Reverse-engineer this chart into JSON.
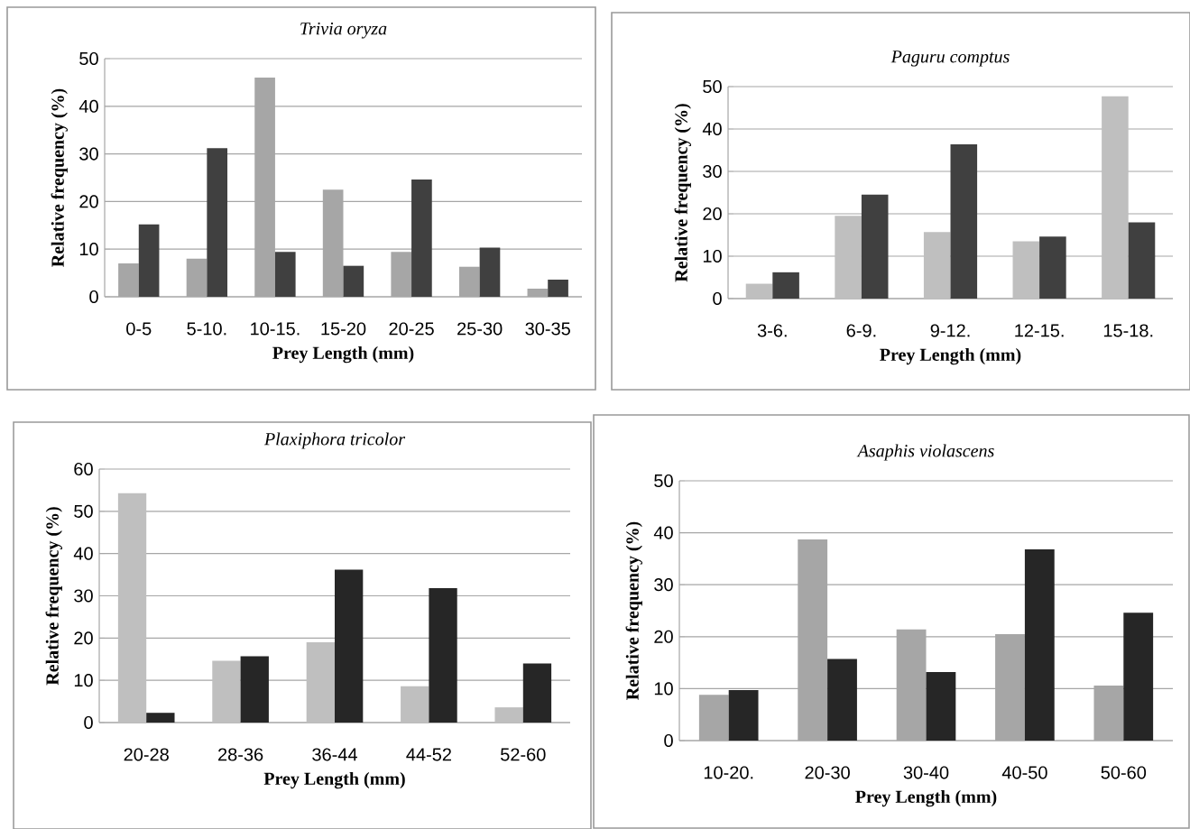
{
  "chart_data": [
    {
      "type": "bar",
      "title": "Trivia oryza",
      "xlabel": "Prey Length (mm)",
      "ylabel": "Relative frequency (%)",
      "categories": [
        "0-5",
        "5-10.",
        "10-15.",
        "15-20",
        "20-25",
        "25-30",
        "30-35"
      ],
      "series": [
        {
          "color": "#a6a6a6",
          "values": [
            7,
            8,
            46,
            22.5,
            9.4,
            6.3,
            1.7
          ]
        },
        {
          "color": "#404040",
          "values": [
            15.2,
            31.2,
            9.4,
            6.5,
            24.6,
            10.3,
            3.6
          ]
        }
      ],
      "ylim": [
        0,
        50
      ],
      "yticks": [
        0,
        10,
        20,
        30,
        40,
        50
      ],
      "grid": "y"
    },
    {
      "type": "bar",
      "title": "Paguru comptus",
      "xlabel": "Prey Length (mm)",
      "ylabel": "Relative frequency (%)",
      "categories": [
        "3-6.",
        "6-9.",
        "9-12.",
        "12-15.",
        "15-18."
      ],
      "series": [
        {
          "color": "#bfbfbf",
          "values": [
            3.5,
            19.5,
            15.7,
            13.5,
            47.7
          ]
        },
        {
          "color": "#404040",
          "values": [
            6.2,
            24.5,
            36.4,
            14.6,
            18
          ]
        }
      ],
      "ylim": [
        0,
        50
      ],
      "yticks": [
        0,
        10,
        20,
        30,
        40,
        50
      ],
      "grid": "y"
    },
    {
      "type": "bar",
      "title": "Plaxiphora tricolor",
      "xlabel": "Prey Length (mm)",
      "ylabel": "Relative frequency (%)",
      "categories": [
        "20-28",
        "28-36",
        "36-44",
        "44-52",
        "52-60"
      ],
      "series": [
        {
          "color": "#bfbfbf",
          "values": [
            54.3,
            14.6,
            19,
            8.6,
            3.6
          ]
        },
        {
          "color": "#262626",
          "values": [
            2.3,
            15.7,
            36.2,
            31.8,
            14
          ]
        }
      ],
      "ylim": [
        0,
        60
      ],
      "yticks": [
        0,
        10,
        20,
        30,
        40,
        50,
        60
      ],
      "grid": "y"
    },
    {
      "type": "bar",
      "title": "Asaphis violascens",
      "xlabel": "Prey Length (mm)",
      "ylabel": "Relative frequency (%)",
      "categories": [
        "10-20.",
        "20-30",
        "30-40",
        "40-50",
        "50-60"
      ],
      "series": [
        {
          "color": "#a6a6a6",
          "values": [
            8.8,
            38.7,
            21.4,
            20.5,
            10.6
          ]
        },
        {
          "color": "#262626",
          "values": [
            9.7,
            15.7,
            13.2,
            36.8,
            24.6
          ]
        }
      ],
      "ylim": [
        0,
        50
      ],
      "yticks": [
        0,
        10,
        20,
        30,
        40,
        50
      ],
      "grid": "y"
    }
  ]
}
